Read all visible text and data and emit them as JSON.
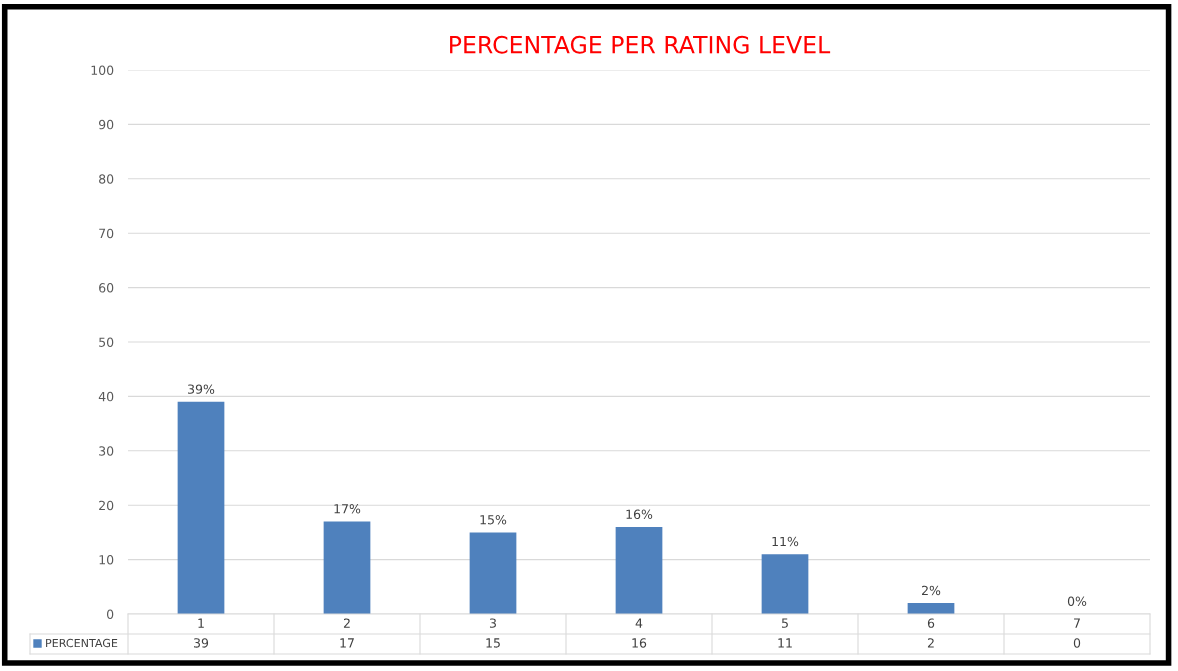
{
  "chart_data": {
    "type": "bar",
    "title": "PERCENTAGE PER RATING LEVEL",
    "categories": [
      "1",
      "2",
      "3",
      "4",
      "5",
      "6",
      "7"
    ],
    "series": [
      {
        "name": "PERCENTAGE",
        "color": "#4f81bd",
        "values": [
          39,
          17,
          15,
          16,
          11,
          2,
          0
        ],
        "value_labels": [
          "39%",
          "17%",
          "15%",
          "16%",
          "11%",
          "2%",
          "0%"
        ]
      }
    ],
    "ylim": [
      0,
      100
    ],
    "yticks": [
      0,
      10,
      20,
      30,
      40,
      50,
      60,
      70,
      80,
      90,
      100
    ],
    "grid": "y",
    "data_labels": true,
    "legend": "bottom",
    "annotations": [
      "39",
      "17",
      "15",
      "16",
      "11",
      "2",
      "0"
    ]
  }
}
